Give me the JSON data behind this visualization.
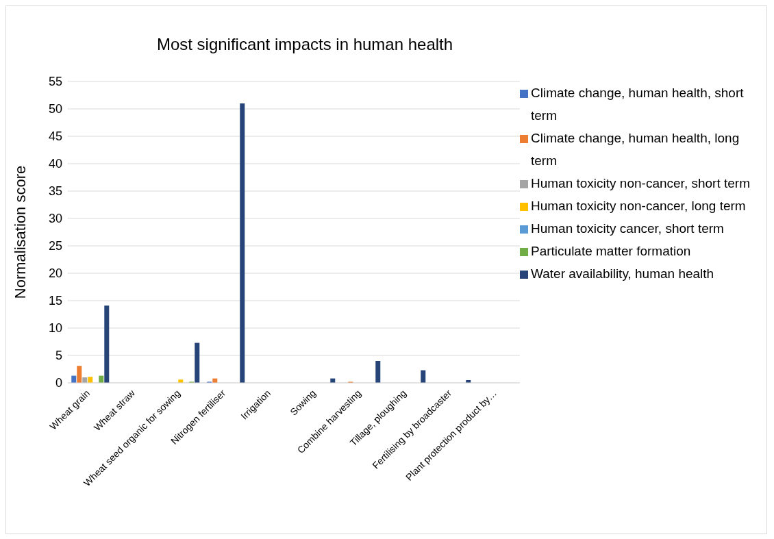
{
  "chart_data": {
    "type": "bar",
    "title": "Most significant impacts in human health",
    "ylabel": "Normalisation score",
    "categories": [
      "Wheat grain",
      "Wheat straw",
      "Wheat seed organic for sowing",
      "Nitrogen fertiliser",
      "Irrigation",
      "Sowing",
      "Combine harvesting",
      "Tillage, ploughing",
      "Fertilising by broadcaster",
      "Plant protection product by…"
    ],
    "series": [
      {
        "name": "Climate change, human health, short term",
        "color": "#4472c4",
        "values": [
          1.3,
          0,
          0,
          0.2,
          0,
          0,
          0,
          0,
          0,
          0
        ]
      },
      {
        "name": "Climate change, human health, long term",
        "color": "#ed7d31",
        "values": [
          3.1,
          0,
          null,
          0.8,
          0,
          0,
          0.2,
          null,
          0,
          0
        ]
      },
      {
        "name": "Human toxicity non-cancer, short term",
        "color": "#a5a5a5",
        "values": [
          1.0,
          0,
          null,
          0,
          0,
          0,
          0,
          0,
          0,
          0
        ]
      },
      {
        "name": "Human toxicity non-cancer, long term",
        "color": "#ffc000",
        "values": [
          1.1,
          0,
          0.6,
          0,
          0,
          0,
          0,
          0,
          0,
          0
        ]
      },
      {
        "name": "Human toxicity cancer, short term",
        "color": "#5b9bd5",
        "values": [
          0,
          0,
          0,
          0,
          0,
          0,
          0,
          0,
          0,
          0
        ]
      },
      {
        "name": "Particulate matter formation",
        "color": "#70ad47",
        "values": [
          1.3,
          0,
          0.2,
          null,
          0,
          0,
          0,
          0,
          0,
          0
        ]
      },
      {
        "name": "Water availability, human health",
        "color": "#264478",
        "values": [
          14.1,
          0,
          7.3,
          51,
          0,
          0.8,
          4.0,
          2.3,
          0.5,
          0
        ]
      }
    ],
    "ylim": [
      0,
      55
    ],
    "yticks": [
      0,
      5,
      10,
      15,
      20,
      25,
      30,
      35,
      40,
      45,
      50,
      55
    ],
    "grid": "y",
    "legend": "right"
  }
}
